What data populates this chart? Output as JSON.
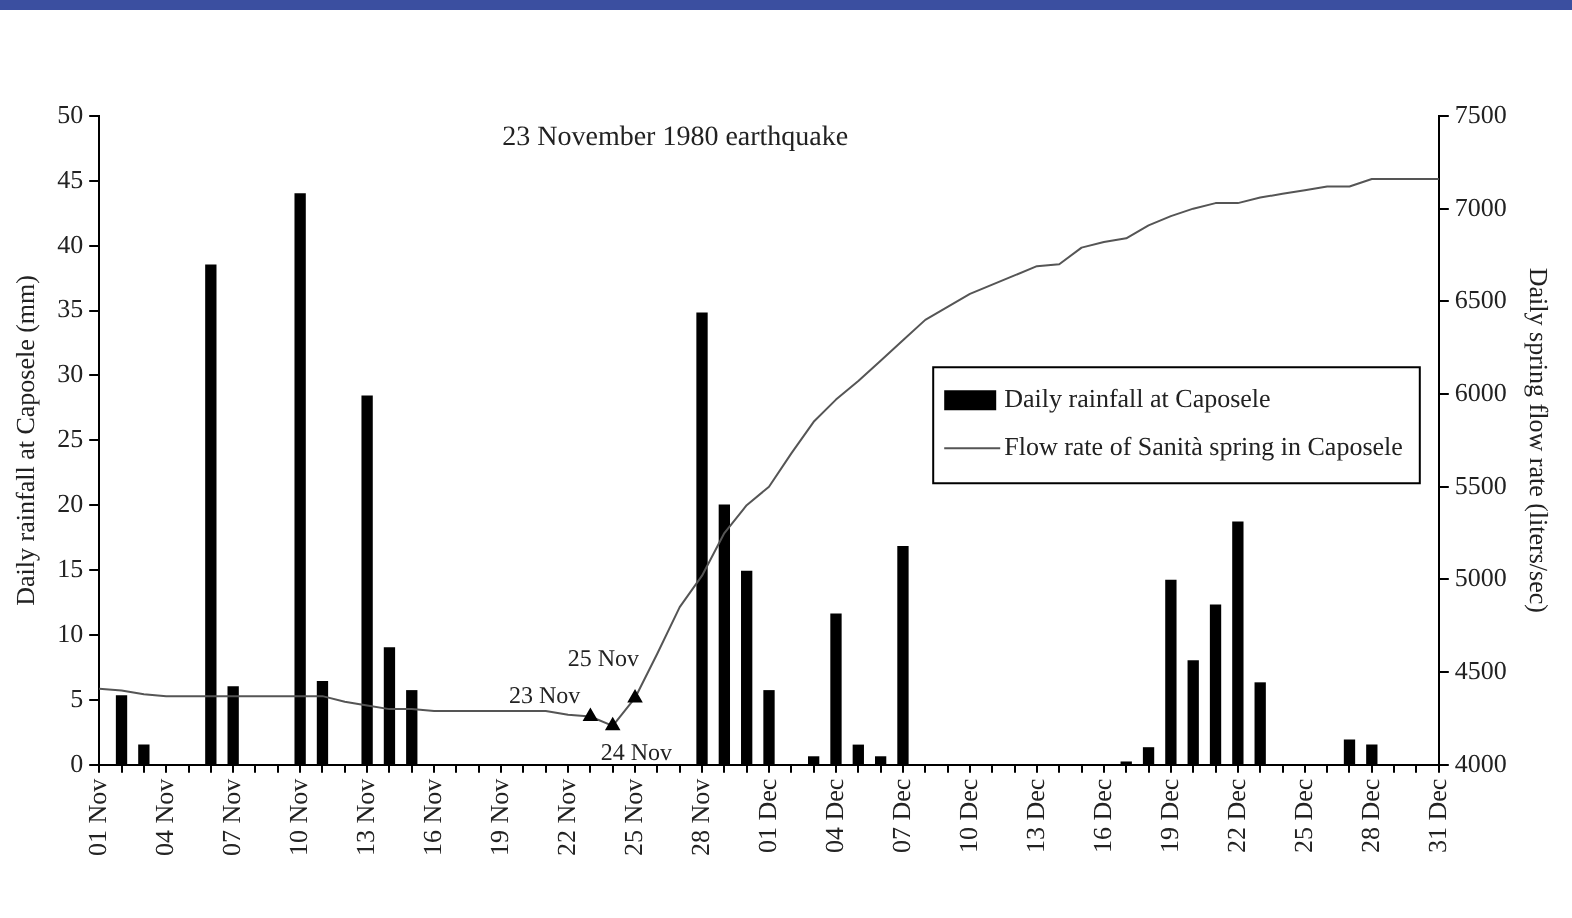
{
  "chart_data": {
    "type": "bar",
    "title": "23 November 1980 earthquake",
    "ylabel": "Daily rainfall at Caposele (mm)",
    "y2label": "Daily spring flow rate (liters/sec)",
    "categories": [
      "01 Nov",
      null,
      null,
      "04 Nov",
      null,
      null,
      "07 Nov",
      null,
      null,
      "10 Nov",
      null,
      null,
      "13 Nov",
      null,
      null,
      "16 Nov",
      null,
      null,
      "19 Nov",
      null,
      null,
      "22 Nov",
      null,
      null,
      "25 Nov",
      null,
      null,
      "28 Nov",
      null,
      null,
      "01 Dec",
      null,
      null,
      "04 Dec",
      null,
      null,
      "07 Dec",
      null,
      null,
      "10 Dec",
      null,
      null,
      "13 Dec",
      null,
      null,
      "16 Dec",
      null,
      null,
      "19 Dec",
      null,
      null,
      "22 Dec",
      null,
      null,
      "25 Dec",
      null,
      null,
      "28 Dec",
      null,
      null,
      "31 Dec"
    ],
    "ylim": [
      0,
      50
    ],
    "yticks": [
      0,
      5,
      10,
      15,
      20,
      25,
      30,
      35,
      40,
      45,
      50
    ],
    "y2lim": [
      4000,
      7500
    ],
    "y2ticks": [
      4000,
      4500,
      5000,
      5500,
      6000,
      6500,
      7000,
      7500
    ],
    "grid": false,
    "legend": "right",
    "series": [
      {
        "name": "Daily rainfall at Caposele",
        "color": "#000000",
        "values": [
          null,
          5.3,
          1.5,
          null,
          null,
          38.5,
          6,
          null,
          null,
          44,
          6.4,
          null,
          28.4,
          9,
          5.7,
          null,
          null,
          null,
          null,
          null,
          null,
          null,
          null,
          null,
          null,
          null,
          null,
          34.8,
          20,
          14.9,
          5.7,
          null,
          0.6,
          11.6,
          1.5,
          0.6,
          16.8,
          null,
          null,
          null,
          null,
          null,
          null,
          null,
          null,
          null,
          0.2,
          1.3,
          14.2,
          8,
          12.3,
          18.7,
          6.3,
          null,
          null,
          null,
          1.9,
          1.5,
          null,
          null,
          null
        ]
      },
      {
        "type": "line",
        "name": "Flow rate of Sanità spring in Caposele",
        "color": "#555555",
        "axis": "y2",
        "marker": "none",
        "values": [
          4410,
          4400,
          4380,
          4370,
          4370,
          4370,
          4370,
          4370,
          4370,
          4370,
          4370,
          4340,
          4320,
          4300,
          4300,
          4290,
          4290,
          4290,
          4290,
          4290,
          4290,
          4270,
          4260,
          4210,
          4360,
          4600,
          4850,
          5020,
          5250,
          5400,
          5500,
          5680,
          5850,
          5970,
          6070,
          6180,
          6290,
          6400,
          6470,
          6540,
          6590,
          6640,
          6690,
          6700,
          6790,
          6820,
          6840,
          6910,
          6960,
          7000,
          7030,
          7030,
          7060,
          7080,
          7100,
          7120,
          7120,
          7160,
          7160,
          7160,
          7160
        ]
      },
      {
        "type": "scatter",
        "color": "#000000",
        "axis": "y2",
        "marker": "triangle",
        "values": [
          null,
          null,
          null,
          null,
          null,
          null,
          null,
          null,
          null,
          null,
          null,
          null,
          null,
          null,
          null,
          null,
          null,
          null,
          null,
          null,
          null,
          null,
          4260,
          4210,
          4360,
          null,
          null,
          null,
          null,
          null,
          null,
          null,
          null,
          null,
          null,
          null,
          null,
          null,
          null,
          null,
          null,
          null,
          null,
          null,
          null,
          null,
          null,
          null,
          null,
          null,
          null,
          null,
          null,
          null,
          null,
          null,
          null,
          null,
          null,
          null,
          null
        ]
      }
    ],
    "annotations": [
      "23 Nov",
      "24 Nov",
      "25 Nov"
    ]
  }
}
